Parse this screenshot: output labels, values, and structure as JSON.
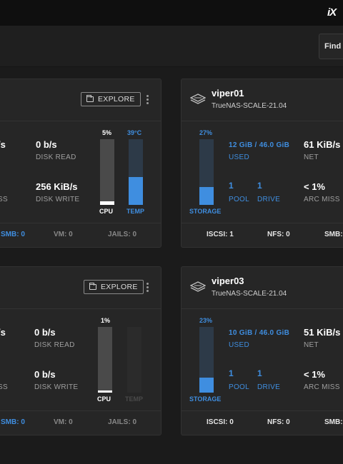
{
  "topbar": {
    "logo_text": "iX"
  },
  "toolbar": {
    "find_label": "Find"
  },
  "colors": {
    "accent_blue": "#3f8ee0",
    "card_bg": "#262626",
    "page_bg": "#1b1b1b"
  },
  "cards": [
    {
      "explore_label": "EXPLORE",
      "net_partial": "/s",
      "arc_partial": "SS",
      "disk_read_value": "0 b/s",
      "disk_read_label": "DISK READ",
      "disk_write_value": "256 KiB/s",
      "disk_write_label": "DISK WRITE",
      "cpu": {
        "percent_text": "5%",
        "label": "CPU",
        "level": 0.05
      },
      "temp": {
        "value_text": "39°C",
        "label": "TEMP",
        "level": 0.42
      },
      "footer": {
        "smb": "SMB: 0",
        "vm": "VM: 0",
        "jails": "JAILS: 0"
      }
    },
    {
      "name": "viper01",
      "version": "TrueNAS-SCALE-21.04",
      "storage": {
        "percent_text": "27%",
        "label": "STORAGE",
        "level": 0.27
      },
      "used_value": "12 GiB / 46.0 GiB",
      "used_label": "USED",
      "pool_value": "1",
      "pool_label": "POOL",
      "drive_value": "1",
      "drive_label": "DRIVE",
      "net_value": "61 KiB/s",
      "net_label": "NET",
      "arc_value": "< 1%",
      "arc_label": "ARC MISS",
      "footer": {
        "iscsi": "ISCSI: 1",
        "nfs": "NFS: 0",
        "smb": "SMB:"
      }
    },
    {
      "explore_label": "EXPLORE",
      "net_partial": "/s",
      "arc_partial": "SS",
      "disk_read_value": "0 b/s",
      "disk_read_label": "DISK READ",
      "disk_write_value": "0 b/s",
      "disk_write_label": "DISK WRITE",
      "cpu": {
        "percent_text": "1%",
        "label": "CPU",
        "level": 0.01
      },
      "temp": {
        "value_text": "",
        "label": "TEMP",
        "level": 0
      },
      "footer": {
        "smb": "SMB: 0",
        "vm": "VM: 0",
        "jails": "JAILS: 0"
      }
    },
    {
      "name": "viper03",
      "version": "TrueNAS-SCALE-21.04",
      "storage": {
        "percent_text": "23%",
        "label": "STORAGE",
        "level": 0.23
      },
      "used_value": "10 GiB / 46.0 GiB",
      "used_label": "USED",
      "pool_value": "1",
      "pool_label": "POOL",
      "drive_value": "1",
      "drive_label": "DRIVE",
      "net_value": "51 KiB/s",
      "net_label": "NET",
      "arc_value": "< 1%",
      "arc_label": "ARC MISS",
      "footer": {
        "iscsi": "ISCSI: 0",
        "nfs": "NFS: 0",
        "smb": "SMB:"
      }
    }
  ]
}
